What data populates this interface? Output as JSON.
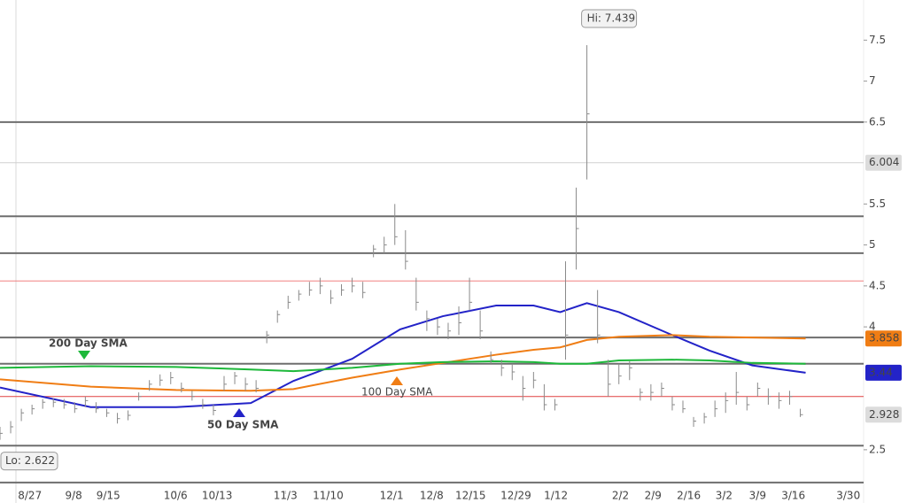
{
  "chart_data": {
    "type": "ohlc",
    "xlim": [
      0,
      170
    ],
    "ylim": [
      1.85,
      7.99
    ],
    "yticks": [
      2.5,
      4,
      4.5,
      5,
      5.5,
      6.5,
      7,
      7.5
    ],
    "xticks": [
      {
        "value": 5.6,
        "label": "8/27"
      },
      {
        "value": 13.8,
        "label": "9/8"
      },
      {
        "value": 20.3,
        "label": "9/15"
      },
      {
        "value": 32.9,
        "label": "10/6"
      },
      {
        "value": 40.7,
        "label": "10/13"
      },
      {
        "value": 53.5,
        "label": "11/3"
      },
      {
        "value": 61.5,
        "label": "11/10"
      },
      {
        "value": 73.4,
        "label": "12/1"
      },
      {
        "value": 80.9,
        "label": "12/8"
      },
      {
        "value": 88.2,
        "label": "12/15"
      },
      {
        "value": 96.7,
        "label": "12/29"
      },
      {
        "value": 104.2,
        "label": "1/12"
      },
      {
        "value": 116.3,
        "label": "2/2"
      },
      {
        "value": 122.4,
        "label": "2/9"
      },
      {
        "value": 129.1,
        "label": "2/16"
      },
      {
        "value": 135.7,
        "label": "3/2"
      },
      {
        "value": 142,
        "label": "3/9"
      },
      {
        "value": 148.7,
        "label": "3/16"
      },
      {
        "value": 159,
        "label": "3/30"
      }
    ],
    "bar_color": "#8a8a8a",
    "x": [
      0,
      2,
      4,
      6,
      8,
      10,
      12,
      14,
      16,
      18,
      20,
      22,
      24,
      26,
      28,
      30,
      32,
      34,
      36,
      38,
      40,
      42,
      44,
      46,
      48,
      50,
      52,
      54,
      56,
      58,
      60,
      62,
      64,
      66,
      68,
      70,
      72,
      74,
      76,
      78,
      80,
      82,
      84,
      86,
      88,
      90,
      92,
      94,
      96,
      98,
      100,
      102,
      104,
      106,
      108,
      110,
      112,
      114,
      116,
      118,
      120,
      122,
      124,
      126,
      128,
      130,
      132,
      134,
      136,
      138,
      140,
      142,
      144,
      146,
      148,
      150
    ],
    "high": [
      2.78,
      2.85,
      3.0,
      3.05,
      3.12,
      3.13,
      3.12,
      3.08,
      3.15,
      3.08,
      3.0,
      2.95,
      2.98,
      3.2,
      3.35,
      3.42,
      3.45,
      3.32,
      3.22,
      3.12,
      3.05,
      3.4,
      3.45,
      3.38,
      3.35,
      3.95,
      4.2,
      4.38,
      4.45,
      4.55,
      4.6,
      4.45,
      4.52,
      4.6,
      4.55,
      5.0,
      5.1,
      5.5,
      5.18,
      4.6,
      4.2,
      4.1,
      4.05,
      4.25,
      4.6,
      4.2,
      3.7,
      3.6,
      3.55,
      3.4,
      3.45,
      3.3,
      3.12,
      4.8,
      5.7,
      7.439,
      4.45,
      3.6,
      3.55,
      3.58,
      3.25,
      3.3,
      3.32,
      3.15,
      3.1,
      2.9,
      2.95,
      3.1,
      3.2,
      3.45,
      3.15,
      3.32,
      3.25,
      3.2,
      3.22,
      3.0
    ],
    "low": [
      2.622,
      2.7,
      2.85,
      2.93,
      3.0,
      3.02,
      3.0,
      2.95,
      3.02,
      2.95,
      2.9,
      2.82,
      2.86,
      3.1,
      3.22,
      3.28,
      3.3,
      3.2,
      3.1,
      3.0,
      2.92,
      3.22,
      3.3,
      3.22,
      3.2,
      3.8,
      4.05,
      4.22,
      4.32,
      4.38,
      4.4,
      4.28,
      4.38,
      4.42,
      4.35,
      4.85,
      4.9,
      5.0,
      4.7,
      4.2,
      3.95,
      3.9,
      3.85,
      3.9,
      4.2,
      3.85,
      3.55,
      3.4,
      3.35,
      3.1,
      3.25,
      2.98,
      2.98,
      3.6,
      4.7,
      5.8,
      3.8,
      3.15,
      3.3,
      3.35,
      3.1,
      3.1,
      3.15,
      2.98,
      2.95,
      2.78,
      2.82,
      2.9,
      2.95,
      3.05,
      2.98,
      3.15,
      3.05,
      3.0,
      3.05,
      2.9
    ],
    "close": [
      2.7,
      2.78,
      2.95,
      3.0,
      3.08,
      3.08,
      3.05,
      3.0,
      3.1,
      3.0,
      2.95,
      2.88,
      2.92,
      3.15,
      3.3,
      3.35,
      3.38,
      3.25,
      3.15,
      3.05,
      2.98,
      3.3,
      3.4,
      3.3,
      3.25,
      3.9,
      4.15,
      4.3,
      4.4,
      4.45,
      4.5,
      4.35,
      4.45,
      4.5,
      4.42,
      4.95,
      5.0,
      5.1,
      4.8,
      4.3,
      4.1,
      4.0,
      3.95,
      4.05,
      4.3,
      3.95,
      3.6,
      3.5,
      3.45,
      3.25,
      3.35,
      3.05,
      3.05,
      3.9,
      5.2,
      6.6,
      3.9,
      3.3,
      3.4,
      3.5,
      3.2,
      3.2,
      3.25,
      3.05,
      3.0,
      2.85,
      2.9,
      3.0,
      3.1,
      3.2,
      3.05,
      3.25,
      3.15,
      3.1,
      3.15,
      2.928
    ],
    "close_label": "2.928",
    "hi_label": "Hi: 7.439",
    "lo_label": "Lo: 2.622",
    "levels": [
      {
        "value": 6.5,
        "color": "#6e6e6e"
      },
      {
        "value": 5.35,
        "color": "#6e6e6e"
      },
      {
        "value": 4.9,
        "color": "#6e6e6e"
      },
      {
        "value": 3.87,
        "color": "#6e6e6e"
      },
      {
        "value": 3.55,
        "color": "#6e6e6e"
      },
      {
        "value": 2.55,
        "color": "#6e6e6e"
      },
      {
        "value": 2.1,
        "color": "#6e6e6e"
      },
      {
        "value": 6.004,
        "color": "#d0d0d0",
        "label": "6.004"
      },
      {
        "value": 4.56,
        "color": "#f08080"
      },
      {
        "value": 3.15,
        "color": "#e04040"
      }
    ],
    "sma": [
      {
        "name": "50 Day SMA",
        "color": "#2323c8",
        "x": [
          0,
          17,
          33,
          47,
          55,
          66,
          75,
          83,
          93,
          100,
          105,
          110,
          116,
          126,
          133,
          141,
          151
        ],
        "values": [
          3.26,
          3.02,
          3.02,
          3.07,
          3.34,
          3.61,
          3.97,
          4.13,
          4.26,
          4.26,
          4.18,
          4.29,
          4.18,
          3.9,
          3.71,
          3.53,
          3.44
        ],
        "last_label": "3.44"
      },
      {
        "name": "100  Day SMA",
        "color": "#f07d14",
        "x": [
          0,
          17,
          33,
          47,
          55,
          66,
          75,
          83,
          93,
          100,
          105,
          110,
          116,
          126,
          133,
          141,
          151
        ],
        "values": [
          3.36,
          3.27,
          3.23,
          3.22,
          3.24,
          3.38,
          3.48,
          3.56,
          3.66,
          3.72,
          3.75,
          3.84,
          3.88,
          3.9,
          3.88,
          3.87,
          3.858
        ],
        "last_label": "3.858"
      },
      {
        "name": "200 Day SMA",
        "color": "#1db83a",
        "x": [
          0,
          17,
          33,
          47,
          55,
          66,
          75,
          83,
          93,
          100,
          105,
          110,
          116,
          126,
          133,
          141,
          151
        ],
        "values": [
          3.5,
          3.52,
          3.51,
          3.48,
          3.46,
          3.5,
          3.55,
          3.57,
          3.58,
          3.57,
          3.55,
          3.55,
          3.59,
          3.6,
          3.59,
          3.56,
          3.55
        ]
      }
    ]
  }
}
